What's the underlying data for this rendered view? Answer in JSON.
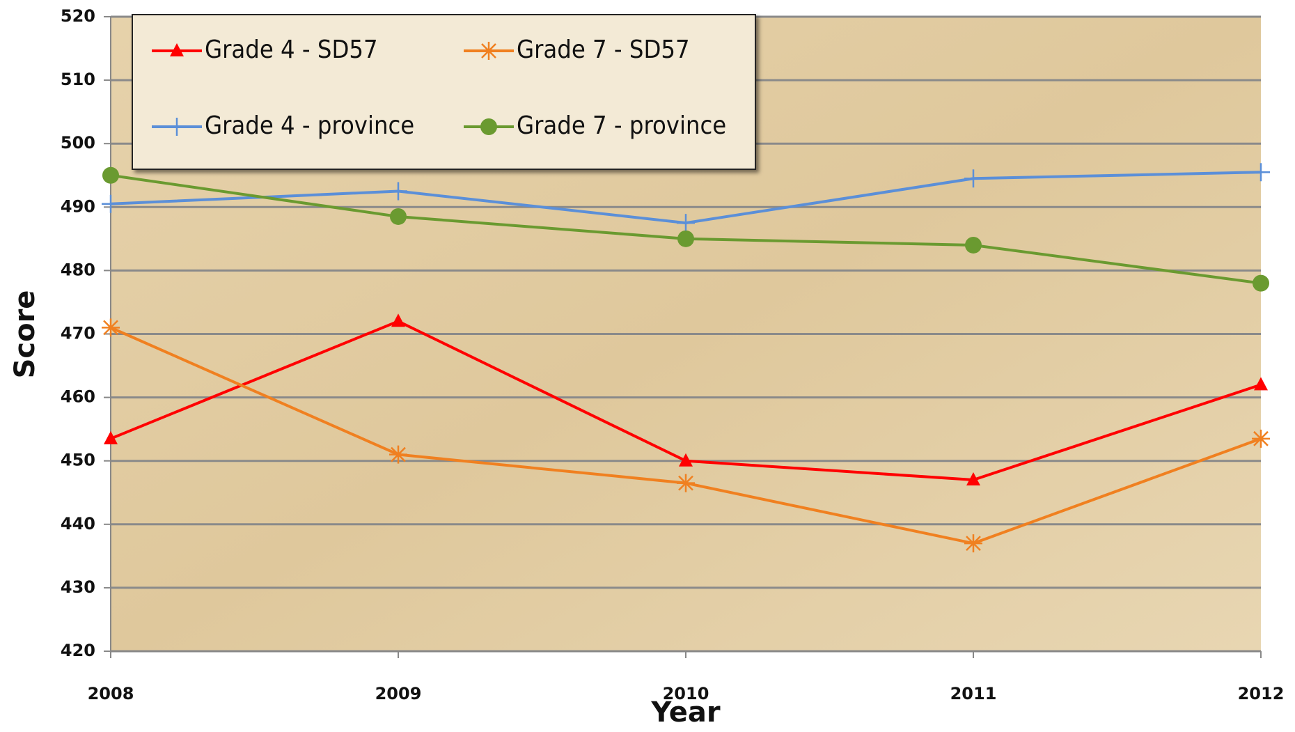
{
  "chart_data": {
    "type": "line",
    "x_label": "Year",
    "y_label": "Score",
    "categories": [
      "2008",
      "2009",
      "2010",
      "2011",
      "2012"
    ],
    "series": [
      {
        "name": "Grade 4 - SD57",
        "color": "#ff0000",
        "marker": "triangle",
        "values": [
          453.5,
          472,
          450,
          447,
          462
        ]
      },
      {
        "name": "Grade 7 - SD57",
        "color": "#f08020",
        "marker": "asterisk",
        "values": [
          471,
          451,
          446.5,
          437,
          453.5
        ]
      },
      {
        "name": "Grade 4 - province",
        "color": "#5b8fd8",
        "marker": "plus",
        "values": [
          490.5,
          492.5,
          487.5,
          494.5,
          495.5
        ]
      },
      {
        "name": "Grade 7 - province",
        "color": "#6a9a30",
        "marker": "circle",
        "values": [
          495,
          488.5,
          485,
          484,
          478
        ]
      }
    ],
    "ylim": [
      420,
      520
    ],
    "yticks": [
      420,
      430,
      440,
      450,
      460,
      470,
      480,
      490,
      500,
      510,
      520
    ],
    "grid": true
  }
}
